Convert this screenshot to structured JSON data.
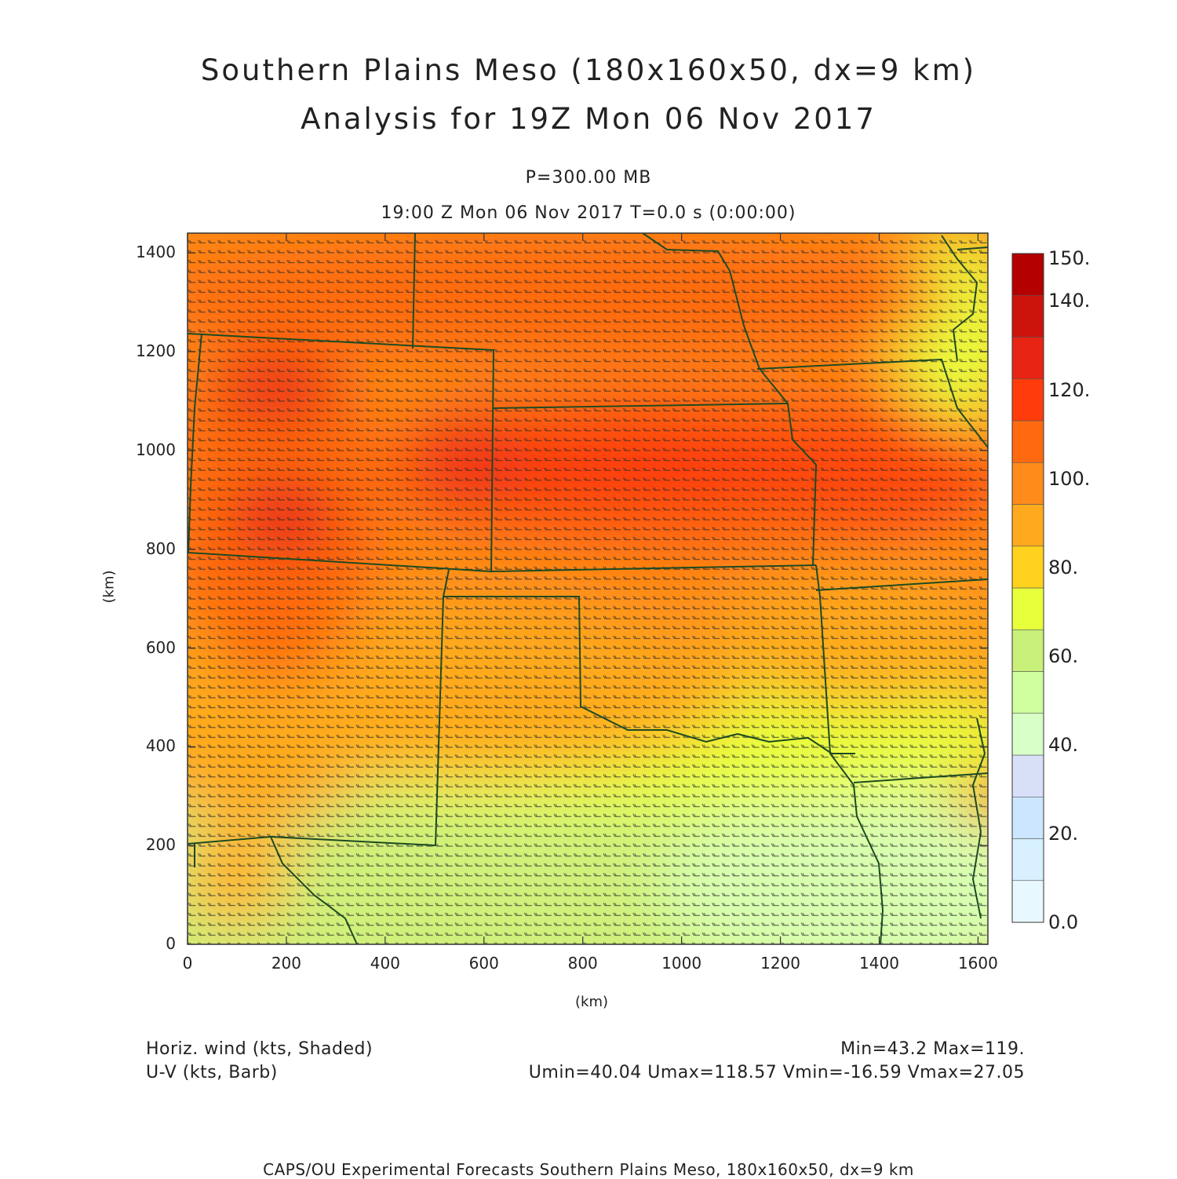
{
  "header": {
    "title_line1": "Southern Plains Meso (180x160x50, dx=9 km)",
    "title_line2": "Analysis for 19Z Mon 06 Nov 2017",
    "level": "P=300.00 MB",
    "time": "19:00 Z Mon 06 Nov 2017    T=0.0 s (0:00:00)"
  },
  "axes": {
    "xlabel": "(km)",
    "ylabel": "(km)",
    "xticks": [
      0,
      200,
      400,
      600,
      800,
      1000,
      1200,
      1400,
      1600
    ],
    "yticks": [
      0,
      200,
      400,
      600,
      800,
      1000,
      1200,
      1400
    ],
    "xlim": [
      0,
      1620
    ],
    "ylim": [
      0,
      1440
    ]
  },
  "colorbar": {
    "labels": [
      "0.0",
      "20.",
      "40.",
      "60.",
      "80.",
      "100.",
      "120.",
      "140.",
      "150."
    ],
    "colors": [
      "#e8f8ff",
      "#d8f0ff",
      "#cde6ff",
      "#d8e0f8",
      "#d8ffc8",
      "#cfff9f",
      "#c8f07a",
      "#e8ff3c",
      "#ffd21e",
      "#ffaa1e",
      "#ff8c1a",
      "#ff6a10",
      "#ff3c0a",
      "#e82414",
      "#cc140c",
      "#b40000"
    ]
  },
  "footer": {
    "field1": "Horiz. wind (kts, Shaded)",
    "field2": "U-V (kts, Barb)",
    "minmax": "Min=43.2 Max=119.",
    "uv_range": "Umin=40.04 Umax=118.57 Vmin=-16.59 Vmax=27.05",
    "credit": "CAPS/OU Experimental Forecasts  Southern Plains Meso, 180x160x50, dx=9 km"
  }
}
